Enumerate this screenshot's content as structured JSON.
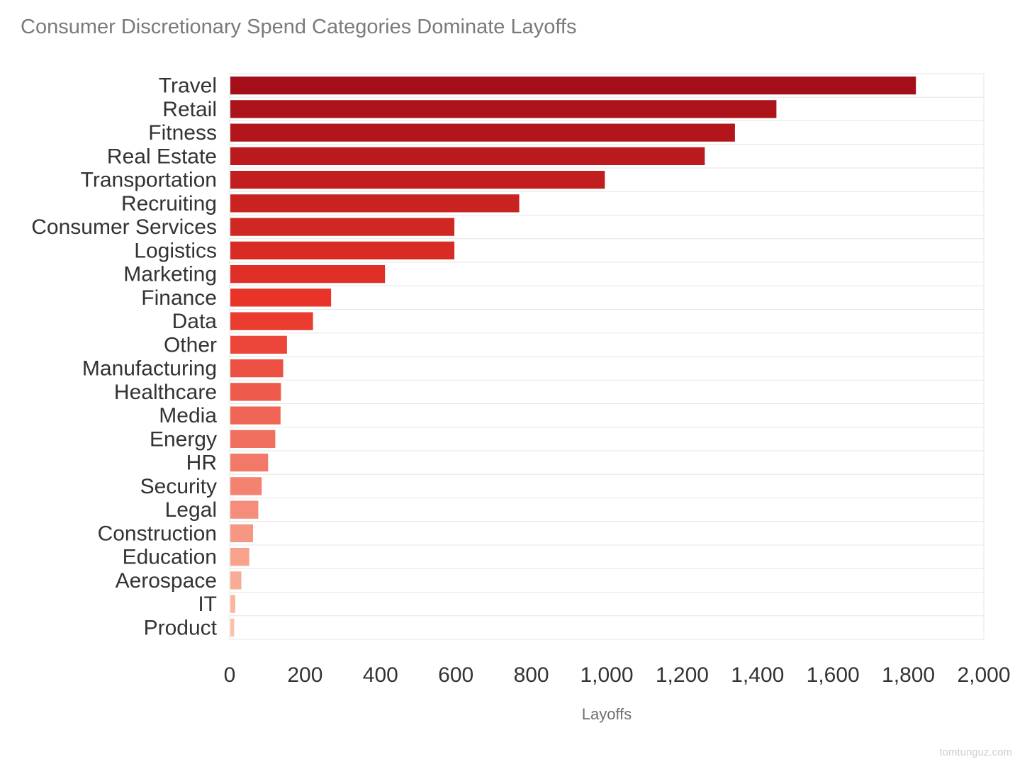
{
  "chart_data": {
    "type": "bar",
    "orientation": "horizontal",
    "title": "Consumer Discretionary Spend Categories Dominate Layoffs",
    "xlabel": "Layoffs",
    "ylabel": "",
    "xlim": [
      0,
      2000
    ],
    "xticks": [
      0,
      200,
      400,
      600,
      800,
      1000,
      1200,
      1400,
      1600,
      1800,
      2000
    ],
    "xtick_labels": [
      "0",
      "200",
      "400",
      "600",
      "800",
      "1,000",
      "1,200",
      "1,400",
      "1,600",
      "1,800",
      "2,000"
    ],
    "grid": true,
    "legend": "none",
    "color_dark": "#a30e18",
    "color_light": "#fcc0a8",
    "categories": [
      "Travel",
      "Retail",
      "Fitness",
      "Real Estate",
      "Transportation",
      "Recruiting",
      "Consumer Services",
      "Logistics",
      "Marketing",
      "Finance",
      "Data",
      "Other",
      "Manufacturing",
      "Healthcare",
      "Media",
      "Energy",
      "HR",
      "Security",
      "Legal",
      "Construction",
      "Education",
      "Aerospace",
      "IT",
      "Product"
    ],
    "values": [
      1820,
      1450,
      1340,
      1260,
      995,
      768,
      596,
      596,
      412,
      269,
      221,
      152,
      142,
      136,
      135,
      121,
      102,
      85,
      76,
      62,
      52,
      31,
      15,
      12
    ]
  },
  "watermark": "tomtunguz.com"
}
